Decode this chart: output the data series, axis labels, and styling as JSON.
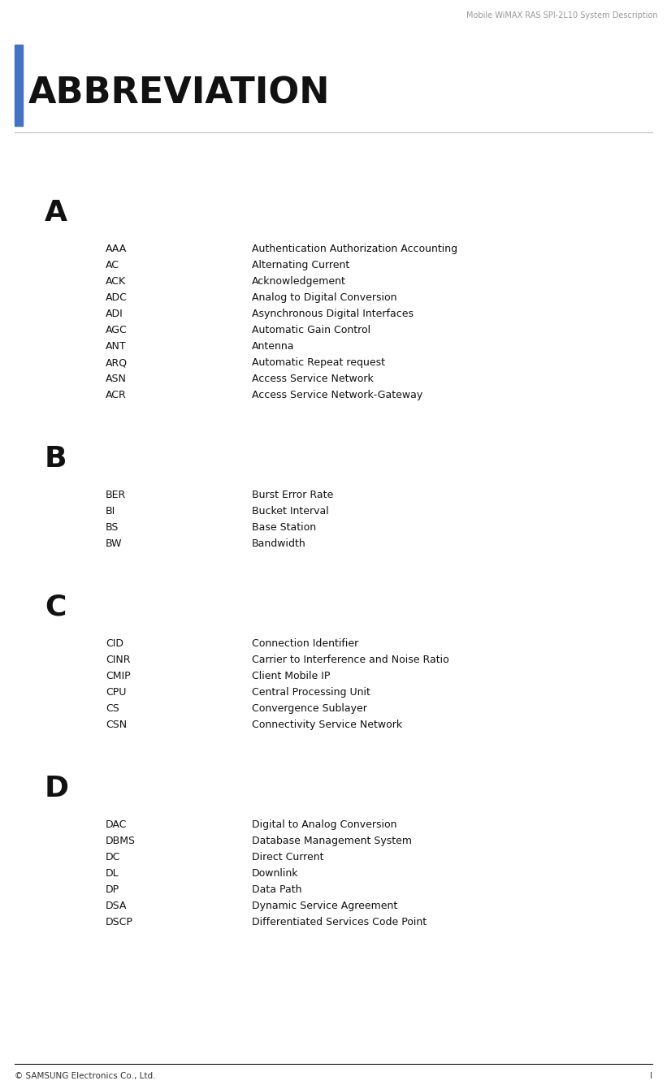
{
  "header_text": "Mobile WiMAX RAS SPI-2L10 System Description",
  "title": "ABBREVIATION",
  "blue_bar_color": "#4472C4",
  "footer_left": "© SAMSUNG Electronics Co., Ltd.",
  "footer_right": "I",
  "sections": [
    {
      "letter": "A",
      "entries": [
        [
          "AAA",
          "Authentication Authorization Accounting"
        ],
        [
          "AC",
          "Alternating Current"
        ],
        [
          "ACK",
          "Acknowledgement"
        ],
        [
          "ADC",
          "Analog to Digital Conversion"
        ],
        [
          "ADI",
          "Asynchronous Digital Interfaces"
        ],
        [
          "AGC",
          "Automatic Gain Control"
        ],
        [
          "ANT",
          "Antenna"
        ],
        [
          "ARQ",
          "Automatic Repeat request"
        ],
        [
          "ASN",
          "Access Service Network"
        ],
        [
          "ACR",
          "Access Service Network-Gateway"
        ]
      ]
    },
    {
      "letter": "B",
      "entries": [
        [
          "BER",
          "Burst Error Rate"
        ],
        [
          "BI",
          "Bucket Interval"
        ],
        [
          "BS",
          "Base Station"
        ],
        [
          "BW",
          "Bandwidth"
        ]
      ]
    },
    {
      "letter": "C",
      "entries": [
        [
          "CID",
          "Connection Identifier"
        ],
        [
          "CINR",
          "Carrier to Interference and Noise Ratio"
        ],
        [
          "CMIP",
          "Client Mobile IP"
        ],
        [
          "CPU",
          "Central Processing Unit"
        ],
        [
          "CS",
          "Convergence Sublayer"
        ],
        [
          "CSN",
          "Connectivity Service Network"
        ]
      ]
    },
    {
      "letter": "D",
      "entries": [
        [
          "DAC",
          "Digital to Analog Conversion"
        ],
        [
          "DBMS",
          "Database Management System"
        ],
        [
          "DC",
          "Direct Current"
        ],
        [
          "DL",
          "Downlink"
        ],
        [
          "DP",
          "Data Path"
        ],
        [
          "DSA",
          "Dynamic Service Agreement"
        ],
        [
          "DSCP",
          "Differentiated Services Code Point"
        ]
      ]
    }
  ]
}
